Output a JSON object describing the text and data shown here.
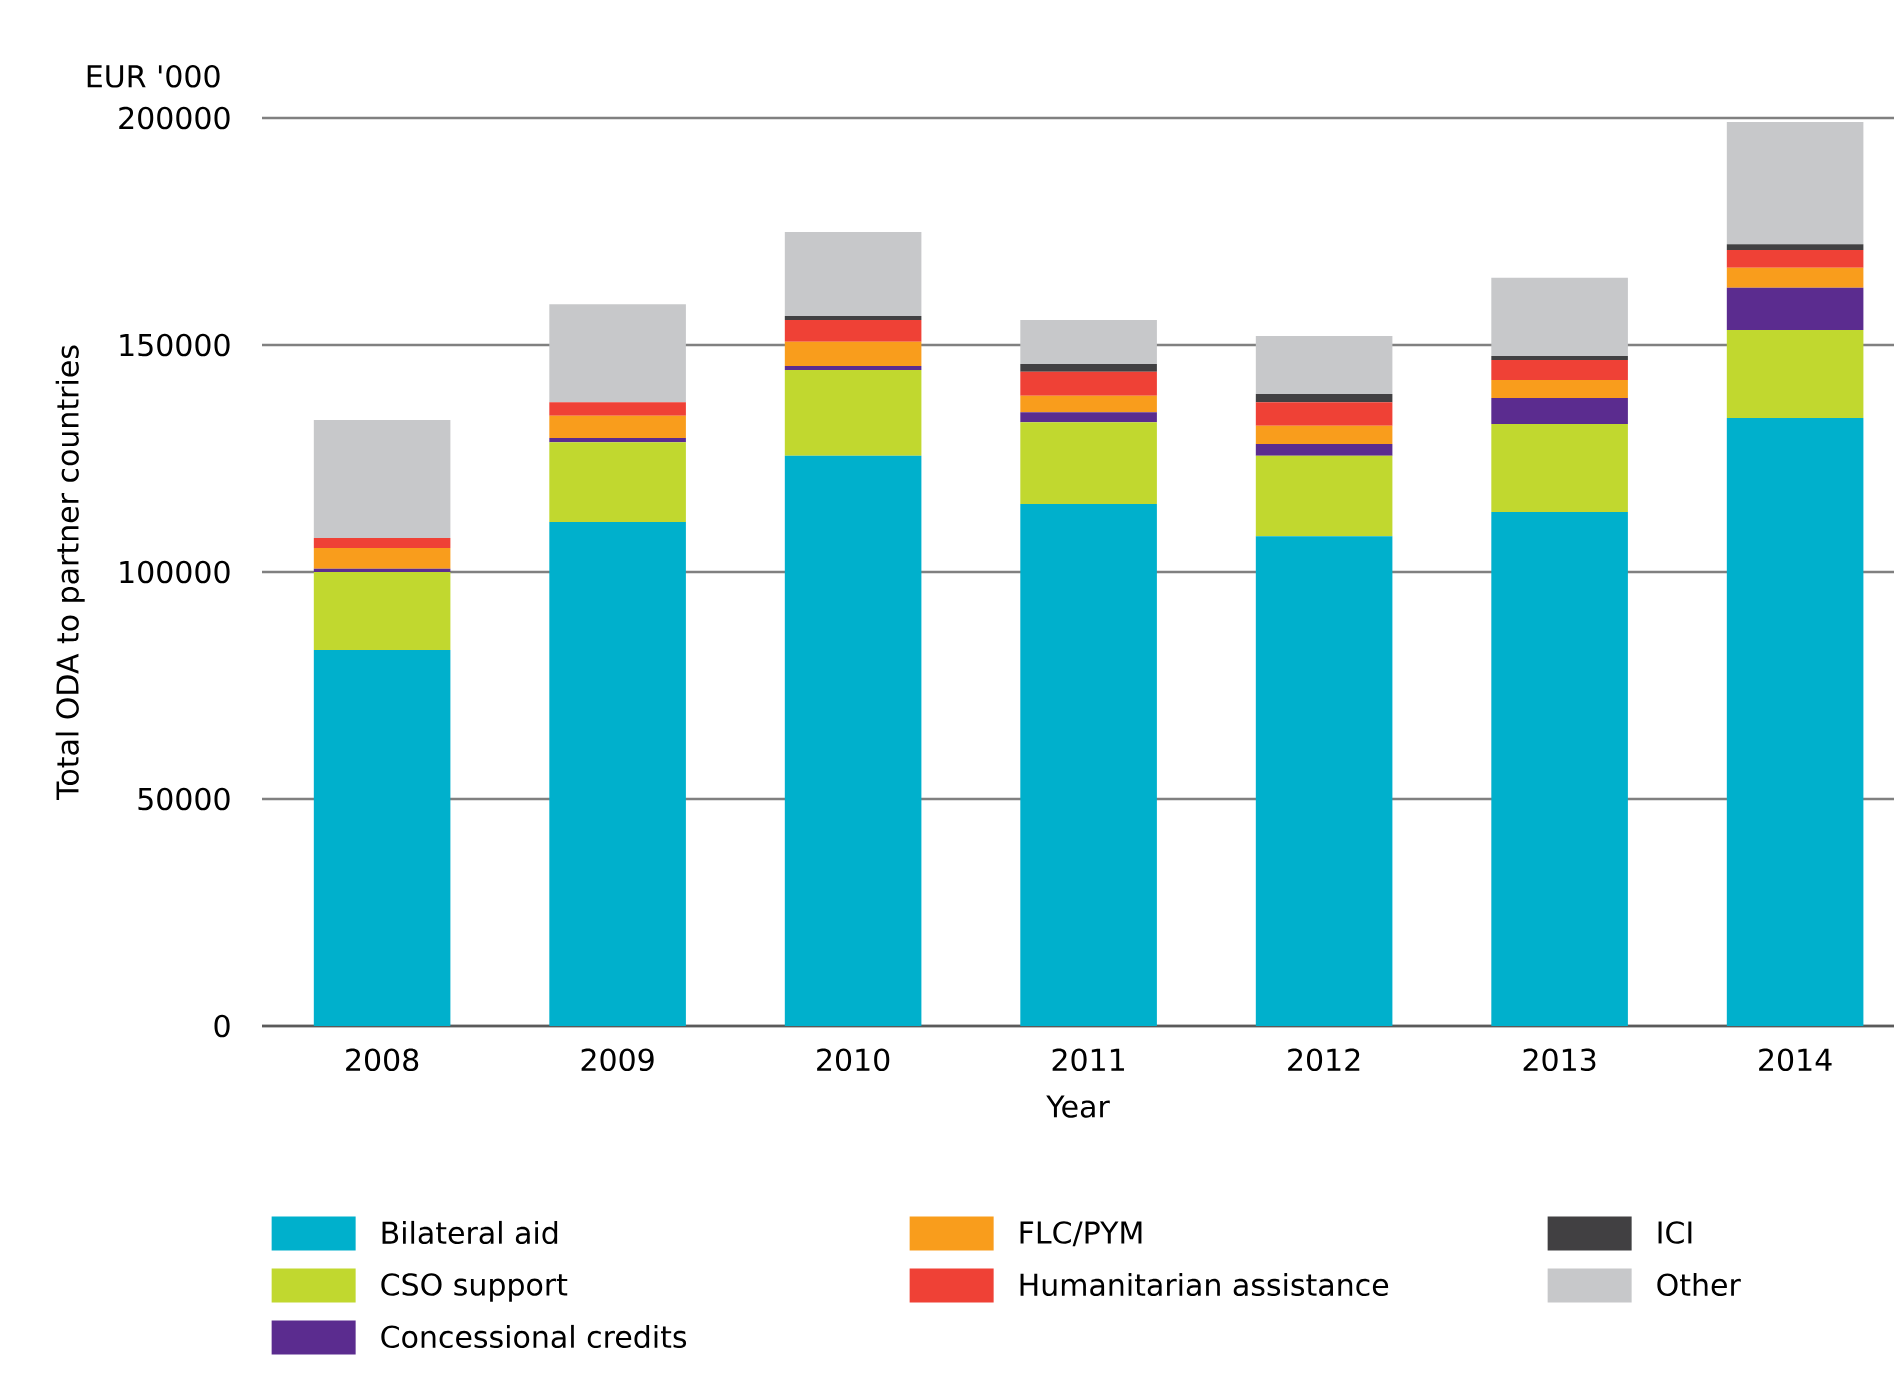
{
  "chart_data": {
    "type": "bar",
    "stacked": true,
    "xlabel": "Year",
    "ylabel": "Total ODA to partner countries",
    "annotations": [
      "EUR '000"
    ],
    "categories": [
      "2008",
      "2009",
      "2010",
      "2011",
      "2012",
      "2013",
      "2014"
    ],
    "ylim": [
      0,
      200000
    ],
    "yticks": [
      0,
      50000,
      100000,
      150000,
      200000
    ],
    "grid": "y",
    "legend": "bottom",
    "series": [
      {
        "name": "Bilateral aid",
        "color": "#00b0cc",
        "values": [
          82800,
          111000,
          125600,
          115000,
          107900,
          113200,
          133900
        ]
      },
      {
        "name": "CSO support",
        "color": "#c1d82f",
        "values": [
          17200,
          17600,
          18900,
          18000,
          17700,
          19400,
          19400
        ]
      },
      {
        "name": "Concessional credits",
        "color": "#5b2c8f",
        "values": [
          700,
          900,
          900,
          2200,
          2600,
          5700,
          9300
        ]
      },
      {
        "name": "FLC/PYM",
        "color": "#f99d1c",
        "values": [
          4600,
          4900,
          5300,
          3600,
          4000,
          4000,
          4400
        ]
      },
      {
        "name": "Humanitarian assistance",
        "color": "#ef4136",
        "values": [
          2200,
          3000,
          4800,
          5300,
          5200,
          4400,
          3900
        ]
      },
      {
        "name": "ICI",
        "color": "#414042",
        "values": [
          0,
          0,
          900,
          1700,
          1800,
          900,
          1300
        ]
      },
      {
        "name": "Other",
        "color": "#c7c8ca",
        "values": [
          26000,
          21600,
          18500,
          9700,
          12800,
          17200,
          26900
        ]
      }
    ]
  }
}
